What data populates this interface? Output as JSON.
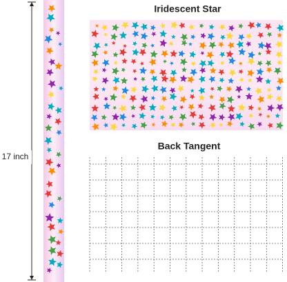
{
  "dimension_label": "17 inch",
  "panels": [
    {
      "title": "Iridescent Star"
    },
    {
      "title": "Back Tangent"
    }
  ]
}
